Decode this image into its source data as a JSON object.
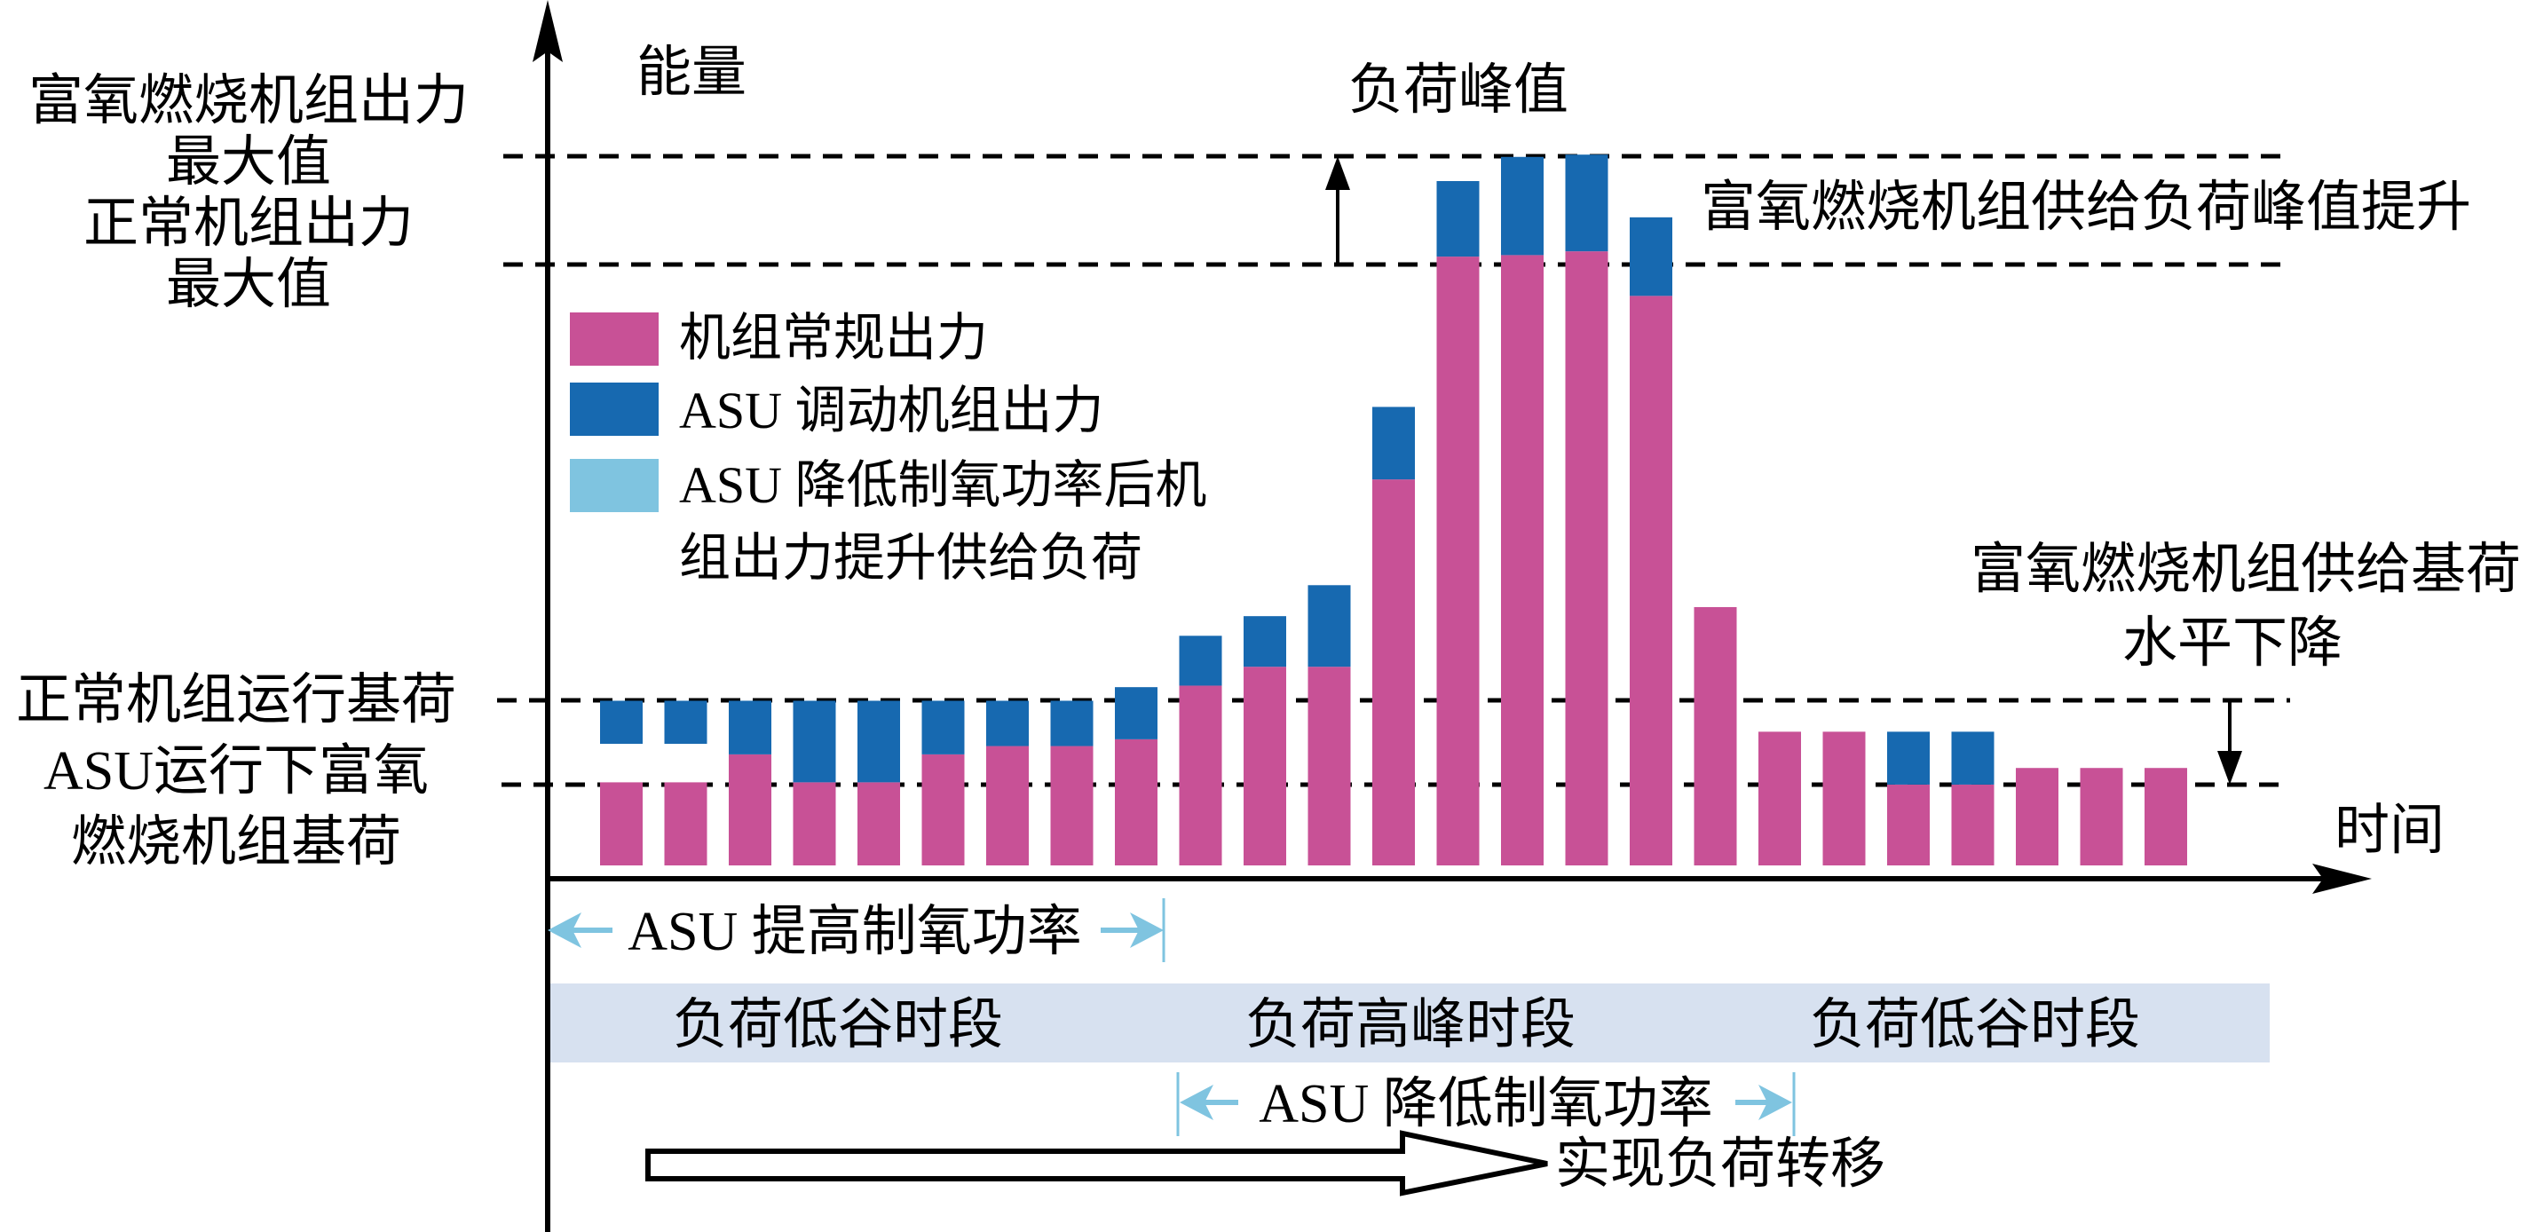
{
  "chart_data": {
    "type": "bar",
    "stacked": true,
    "ylabel": "能量",
    "xlabel": "时间",
    "ylim": [
      0,
      100
    ],
    "grid": false,
    "legend_placement": "top-left",
    "legend": [
      {
        "name": "机组常规出力",
        "color": "#c85196"
      },
      {
        "name": "ASU 调动机组出力",
        "color": "#1769b0"
      },
      {
        "name": "ASU 降低制氧功率后机组出力提升供给负荷",
        "line1": "ASU 降低制氧功率后机",
        "line2": "组出力提升供给负荷",
        "color": "#7fc4e0"
      }
    ],
    "reference_lines": [
      {
        "name": "富氧燃烧机组出力最大值",
        "line1": "富氧燃烧机组出力",
        "line2": "最大值",
        "value": 93.9
      },
      {
        "name": "正常机组出力最大值",
        "line1": "正常机组出力",
        "line2": "最大值",
        "value": 79.6
      },
      {
        "name": "正常机组运行基荷",
        "line1": "正常机组运行基荷",
        "value": 21.8
      },
      {
        "name": "ASU运行下富氧燃烧机组基荷",
        "line1": "ASU运行下富氧",
        "line2": "燃烧机组基荷",
        "value": 10.7
      }
    ],
    "bars": [
      {
        "pink": 11.0,
        "blue": [
          16.1,
          21.8
        ]
      },
      {
        "pink": 11.0,
        "blue": [
          16.1,
          21.8
        ]
      },
      {
        "pink": 14.7,
        "blue": [
          14.7,
          21.8
        ]
      },
      {
        "pink": 11.0,
        "blue": [
          11.0,
          21.8
        ]
      },
      {
        "pink": 11.0,
        "blue": [
          11.0,
          21.8
        ]
      },
      {
        "pink": 14.7,
        "blue": [
          14.7,
          21.8
        ]
      },
      {
        "pink": 15.8,
        "blue": [
          15.8,
          21.8
        ]
      },
      {
        "pink": 15.8,
        "blue": [
          15.8,
          21.8
        ]
      },
      {
        "pink": 16.7,
        "blue": [
          16.7,
          23.6
        ]
      },
      {
        "pink": 23.8,
        "blue": [
          23.8,
          30.4
        ]
      },
      {
        "pink": 26.3,
        "blue": [
          26.3,
          33.0
        ]
      },
      {
        "pink": 26.3,
        "blue": [
          26.3,
          37.1
        ]
      },
      {
        "pink": 51.1,
        "blue": [
          51.1,
          60.7
        ]
      },
      {
        "pink": 80.6,
        "blue": [
          80.6,
          90.6
        ]
      },
      {
        "pink": 80.8,
        "blue": [
          80.8,
          93.8
        ]
      },
      {
        "pink": 81.3,
        "blue": [
          81.3,
          94.1
        ]
      },
      {
        "pink": 75.4,
        "blue": [
          75.4,
          85.8
        ]
      },
      {
        "pink": 34.2,
        "blue": null
      },
      {
        "pink": 17.7,
        "blue": null
      },
      {
        "pink": 17.7,
        "blue": null
      },
      {
        "pink": 10.7,
        "blue": [
          10.7,
          17.7
        ]
      },
      {
        "pink": 10.7,
        "blue": [
          10.7,
          17.7
        ]
      },
      {
        "pink": 12.9,
        "blue": null
      },
      {
        "pink": 12.9,
        "blue": null
      },
      {
        "pink": 12.9,
        "blue": null
      }
    ],
    "annotations": {
      "peak": "负荷峰值",
      "peak_raise": "富氧燃烧机组供给负荷峰值提升",
      "base_drop_line1": "富氧燃烧机组供给基荷",
      "base_drop_line2": "水平下降",
      "asu_increase": "ASU 提高制氧功率",
      "asu_decrease": "ASU 降低制氧功率",
      "load_shift": "实现负荷转移"
    },
    "periods": [
      "负荷低谷时段",
      "负荷高峰时段",
      "负荷低谷时段"
    ]
  },
  "colors": {
    "pink": "#c85196",
    "blue": "#1769b0",
    "light_blue": "#7fc4e0",
    "band": "#d7e1f0"
  }
}
